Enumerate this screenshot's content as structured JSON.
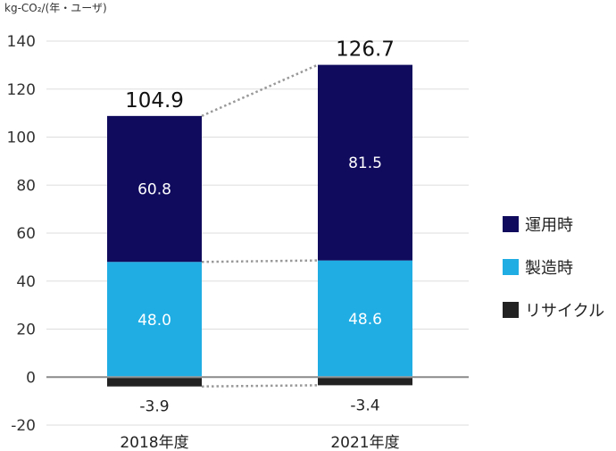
{
  "chart_data": {
    "type": "bar",
    "stacked": true,
    "unit_label": "kg-CO₂/(年・ユーザ)",
    "categories": [
      "2018年度",
      "2021年度"
    ],
    "totals": [
      "104.9",
      "126.7"
    ],
    "ylim": [
      -20,
      140
    ],
    "yticks": [
      -20,
      0,
      20,
      40,
      60,
      80,
      100,
      120,
      140
    ],
    "grid": true,
    "legend_placement": "right",
    "series": [
      {
        "name": "リサイクル",
        "values": [
          -3.9,
          -3.4
        ],
        "labels": [
          "-3.9",
          "-3.4"
        ],
        "color": "#222222"
      },
      {
        "name": "製造時",
        "values": [
          48.0,
          48.6
        ],
        "labels": [
          "48.0",
          "48.6"
        ],
        "color": "#1fade4"
      },
      {
        "name": "運用時",
        "values": [
          60.8,
          81.5
        ],
        "labels": [
          "60.8",
          "81.5"
        ],
        "color": "#110b5e"
      }
    ],
    "connector_color": "#999999"
  },
  "legend": [
    {
      "label": "運用時",
      "color": "#110b5e",
      "icon": "navy-square"
    },
    {
      "label": "製造時",
      "color": "#1fade4",
      "icon": "cyan-square"
    },
    {
      "label": "リサイクル",
      "color": "#222222",
      "icon": "black-square"
    }
  ]
}
